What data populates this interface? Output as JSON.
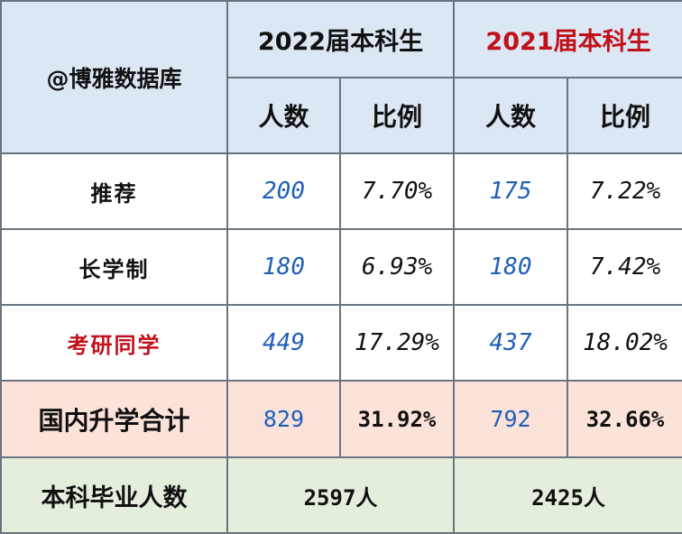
{
  "corner_label": "@博雅数据库",
  "year_2022": "2022届本科生",
  "year_2021": "2021届本科生",
  "subheaders": {
    "count": "人数",
    "ratio": "比例"
  },
  "rows": [
    {
      "label": "推荐",
      "c2022": "200",
      "p2022": "7.70%",
      "c2021": "175",
      "p2021": "7.22%"
    },
    {
      "label": "长学制",
      "c2022": "180",
      "p2022": "6.93%",
      "c2021": "180",
      "p2021": "7.42%"
    },
    {
      "label": "考研同学",
      "c2022": "449",
      "p2022": "17.29%",
      "c2021": "437",
      "p2021": "18.02%"
    }
  ],
  "total": {
    "label": "国内升学合计",
    "c2022": "829",
    "p2022": "31.92%",
    "c2021": "792",
    "p2021": "32.66%"
  },
  "graduates": {
    "label": "本科毕业人数",
    "v2022": "2597人",
    "v2021": "2425人"
  },
  "colors": {
    "header_bg": "#dce7f4",
    "total_bg": "#fbe3da",
    "graduates_bg": "#e3efdc",
    "accent_red": "#c0101a",
    "number_blue": "#1f5fb8"
  }
}
